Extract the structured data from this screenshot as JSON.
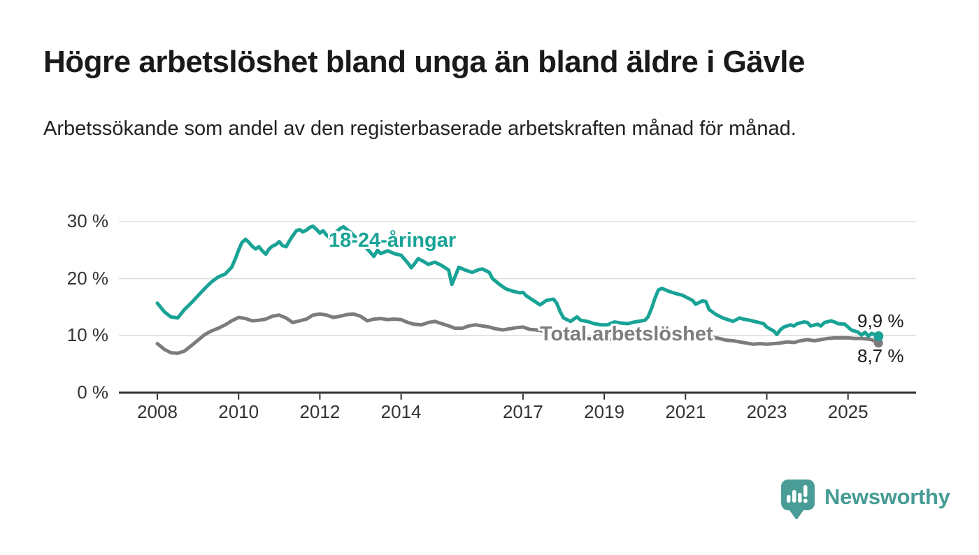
{
  "header": {
    "title": "Högre arbetslöshet bland unga än bland äldre i Gävle",
    "subtitle": "Arbetssökande som andel av den registerbaserade arbetskraften månad för månad."
  },
  "colors": {
    "youth_line": "#18a396",
    "total_line": "#7c7c7c",
    "total_label_text": "#7e7e7e",
    "grid": "#dcdcdc",
    "axis": "#2f2f2f",
    "tick_text": "#333333",
    "end_label_text": "#1a1a1a",
    "brand_teal": "#459c95",
    "background": "#ffffff"
  },
  "branding": {
    "name": "Newsworthy",
    "logo_icon": "speech-bubble-bar-chart-exclamation"
  },
  "chart_data": {
    "type": "line",
    "title": "Högre arbetslöshet bland unga än bland äldre i Gävle",
    "subtitle": "Arbetssökande som andel av den registerbaserade arbetskraften månad för månad.",
    "xlabel": "",
    "ylabel": "",
    "ylim": [
      0,
      30
    ],
    "x_range_decimal_years": [
      2008.0,
      2025.75
    ],
    "grid": true,
    "grid_values": [
      10,
      20,
      30
    ],
    "legend_position": "inline-labels",
    "y_ticks": [
      {
        "value": 30,
        "label": "30 %"
      },
      {
        "value": 20,
        "label": "20 %"
      },
      {
        "value": 10,
        "label": "10 %"
      },
      {
        "value": 0,
        "label": "0 %"
      }
    ],
    "x_ticks": [
      {
        "value": 2008,
        "label": "2008"
      },
      {
        "value": 2010,
        "label": "2010"
      },
      {
        "value": 2012,
        "label": "2012"
      },
      {
        "value": 2014,
        "label": "2014"
      },
      {
        "value": 2017,
        "label": "2017"
      },
      {
        "value": 2019,
        "label": "2019"
      },
      {
        "value": 2021,
        "label": "2021"
      },
      {
        "value": 2023,
        "label": "2023"
      },
      {
        "value": 2025,
        "label": "2025"
      }
    ],
    "series": [
      {
        "name": "18-24-åringar",
        "color": "#18a396",
        "end_label": "9,9 %",
        "end_value": 9.9,
        "points": [
          [
            2008.0,
            15.7
          ],
          [
            2008.17,
            14.2
          ],
          [
            2008.33,
            13.3
          ],
          [
            2008.5,
            13.1
          ],
          [
            2008.67,
            14.6
          ],
          [
            2008.83,
            15.7
          ],
          [
            2009.0,
            17.0
          ],
          [
            2009.17,
            18.3
          ],
          [
            2009.33,
            19.4
          ],
          [
            2009.5,
            20.3
          ],
          [
            2009.67,
            20.8
          ],
          [
            2009.83,
            22.0
          ],
          [
            2009.92,
            23.5
          ],
          [
            2010.0,
            25.0
          ],
          [
            2010.08,
            26.3
          ],
          [
            2010.17,
            26.9
          ],
          [
            2010.25,
            26.4
          ],
          [
            2010.33,
            25.7
          ],
          [
            2010.42,
            25.2
          ],
          [
            2010.5,
            25.6
          ],
          [
            2010.58,
            24.9
          ],
          [
            2010.67,
            24.3
          ],
          [
            2010.75,
            25.2
          ],
          [
            2010.83,
            25.7
          ],
          [
            2010.92,
            26.0
          ],
          [
            2011.0,
            26.5
          ],
          [
            2011.08,
            25.8
          ],
          [
            2011.17,
            25.6
          ],
          [
            2011.25,
            26.6
          ],
          [
            2011.33,
            27.5
          ],
          [
            2011.42,
            28.4
          ],
          [
            2011.5,
            28.6
          ],
          [
            2011.58,
            28.2
          ],
          [
            2011.67,
            28.5
          ],
          [
            2011.75,
            29.0
          ],
          [
            2011.83,
            29.2
          ],
          [
            2011.92,
            28.6
          ],
          [
            2012.0,
            28.0
          ],
          [
            2012.08,
            28.4
          ],
          [
            2012.17,
            27.6
          ],
          [
            2012.25,
            27.2
          ],
          [
            2012.33,
            27.8
          ],
          [
            2012.42,
            28.3
          ],
          [
            2012.5,
            28.8
          ],
          [
            2012.58,
            29.1
          ],
          [
            2012.67,
            28.6
          ],
          [
            2012.75,
            28.2
          ],
          [
            2012.83,
            27.6
          ],
          [
            2012.92,
            27.0
          ],
          [
            2013.0,
            26.4
          ],
          [
            2013.17,
            25.2
          ],
          [
            2013.33,
            23.9
          ],
          [
            2013.42,
            25.0
          ],
          [
            2013.5,
            24.4
          ],
          [
            2013.67,
            24.9
          ],
          [
            2013.83,
            24.4
          ],
          [
            2014.0,
            24.1
          ],
          [
            2014.17,
            22.7
          ],
          [
            2014.25,
            21.9
          ],
          [
            2014.33,
            22.6
          ],
          [
            2014.42,
            23.5
          ],
          [
            2014.58,
            22.9
          ],
          [
            2014.67,
            22.5
          ],
          [
            2014.83,
            22.9
          ],
          [
            2015.0,
            22.3
          ],
          [
            2015.17,
            21.5
          ],
          [
            2015.25,
            19.0
          ],
          [
            2015.33,
            20.4
          ],
          [
            2015.42,
            22.0
          ],
          [
            2015.58,
            21.5
          ],
          [
            2015.75,
            21.1
          ],
          [
            2015.92,
            21.6
          ],
          [
            2016.0,
            21.7
          ],
          [
            2016.17,
            21.1
          ],
          [
            2016.25,
            20.0
          ],
          [
            2016.42,
            19.0
          ],
          [
            2016.58,
            18.2
          ],
          [
            2016.75,
            17.8
          ],
          [
            2016.92,
            17.5
          ],
          [
            2017.0,
            17.6
          ],
          [
            2017.08,
            17.0
          ],
          [
            2017.25,
            16.2
          ],
          [
            2017.42,
            15.4
          ],
          [
            2017.5,
            15.8
          ],
          [
            2017.58,
            16.2
          ],
          [
            2017.75,
            16.4
          ],
          [
            2017.83,
            15.7
          ],
          [
            2017.92,
            14.1
          ],
          [
            2018.0,
            13.1
          ],
          [
            2018.17,
            12.5
          ],
          [
            2018.33,
            13.3
          ],
          [
            2018.42,
            12.7
          ],
          [
            2018.58,
            12.5
          ],
          [
            2018.75,
            12.1
          ],
          [
            2018.92,
            11.9
          ],
          [
            2019.08,
            11.9
          ],
          [
            2019.25,
            12.4
          ],
          [
            2019.42,
            12.2
          ],
          [
            2019.58,
            12.1
          ],
          [
            2019.75,
            12.4
          ],
          [
            2019.92,
            12.6
          ],
          [
            2020.0,
            12.7
          ],
          [
            2020.08,
            13.3
          ],
          [
            2020.17,
            14.9
          ],
          [
            2020.25,
            16.6
          ],
          [
            2020.33,
            18.0
          ],
          [
            2020.42,
            18.3
          ],
          [
            2020.58,
            17.8
          ],
          [
            2020.75,
            17.4
          ],
          [
            2020.92,
            17.1
          ],
          [
            2021.0,
            16.8
          ],
          [
            2021.17,
            16.2
          ],
          [
            2021.25,
            15.5
          ],
          [
            2021.42,
            16.1
          ],
          [
            2021.5,
            16.0
          ],
          [
            2021.58,
            14.6
          ],
          [
            2021.75,
            13.7
          ],
          [
            2021.92,
            13.1
          ],
          [
            2022.0,
            12.9
          ],
          [
            2022.17,
            12.5
          ],
          [
            2022.33,
            13.1
          ],
          [
            2022.42,
            12.9
          ],
          [
            2022.58,
            12.7
          ],
          [
            2022.75,
            12.4
          ],
          [
            2022.92,
            12.1
          ],
          [
            2023.0,
            11.5
          ],
          [
            2023.17,
            10.8
          ],
          [
            2023.25,
            10.2
          ],
          [
            2023.33,
            11.0
          ],
          [
            2023.42,
            11.5
          ],
          [
            2023.58,
            11.9
          ],
          [
            2023.67,
            11.7
          ],
          [
            2023.75,
            12.1
          ],
          [
            2023.92,
            12.4
          ],
          [
            2024.0,
            12.3
          ],
          [
            2024.08,
            11.7
          ],
          [
            2024.25,
            12.0
          ],
          [
            2024.33,
            11.7
          ],
          [
            2024.42,
            12.3
          ],
          [
            2024.58,
            12.6
          ],
          [
            2024.67,
            12.4
          ],
          [
            2024.75,
            12.1
          ],
          [
            2024.92,
            12.0
          ],
          [
            2025.0,
            11.5
          ],
          [
            2025.08,
            11.0
          ],
          [
            2025.25,
            10.6
          ],
          [
            2025.33,
            10.1
          ],
          [
            2025.42,
            10.6
          ],
          [
            2025.5,
            9.9
          ],
          [
            2025.58,
            10.4
          ],
          [
            2025.75,
            9.9
          ]
        ]
      },
      {
        "name": "Total arbetslöshet",
        "color": "#7c7c7c",
        "end_label": "8,7 %",
        "end_value": 8.7,
        "points": [
          [
            2008.0,
            8.6
          ],
          [
            2008.17,
            7.6
          ],
          [
            2008.33,
            7.0
          ],
          [
            2008.5,
            6.9
          ],
          [
            2008.67,
            7.3
          ],
          [
            2008.83,
            8.2
          ],
          [
            2009.0,
            9.2
          ],
          [
            2009.17,
            10.2
          ],
          [
            2009.33,
            10.8
          ],
          [
            2009.5,
            11.3
          ],
          [
            2009.67,
            11.9
          ],
          [
            2009.83,
            12.6
          ],
          [
            2010.0,
            13.2
          ],
          [
            2010.17,
            13.0
          ],
          [
            2010.33,
            12.6
          ],
          [
            2010.5,
            12.7
          ],
          [
            2010.67,
            12.9
          ],
          [
            2010.83,
            13.4
          ],
          [
            2011.0,
            13.6
          ],
          [
            2011.17,
            13.1
          ],
          [
            2011.33,
            12.3
          ],
          [
            2011.5,
            12.6
          ],
          [
            2011.67,
            12.9
          ],
          [
            2011.83,
            13.6
          ],
          [
            2012.0,
            13.8
          ],
          [
            2012.17,
            13.6
          ],
          [
            2012.33,
            13.2
          ],
          [
            2012.5,
            13.4
          ],
          [
            2012.67,
            13.7
          ],
          [
            2012.83,
            13.8
          ],
          [
            2013.0,
            13.4
          ],
          [
            2013.17,
            12.6
          ],
          [
            2013.33,
            12.9
          ],
          [
            2013.5,
            13.0
          ],
          [
            2013.67,
            12.8
          ],
          [
            2013.83,
            12.9
          ],
          [
            2014.0,
            12.8
          ],
          [
            2014.17,
            12.3
          ],
          [
            2014.33,
            12.0
          ],
          [
            2014.5,
            11.9
          ],
          [
            2014.67,
            12.3
          ],
          [
            2014.83,
            12.5
          ],
          [
            2015.0,
            12.1
          ],
          [
            2015.17,
            11.7
          ],
          [
            2015.33,
            11.3
          ],
          [
            2015.5,
            11.3
          ],
          [
            2015.67,
            11.7
          ],
          [
            2015.83,
            11.9
          ],
          [
            2016.0,
            11.7
          ],
          [
            2016.17,
            11.5
          ],
          [
            2016.33,
            11.2
          ],
          [
            2016.5,
            11.0
          ],
          [
            2016.67,
            11.2
          ],
          [
            2016.83,
            11.4
          ],
          [
            2017.0,
            11.5
          ],
          [
            2017.17,
            11.1
          ],
          [
            2017.33,
            11.0
          ],
          [
            2017.5,
            10.8
          ],
          [
            2017.67,
            10.6
          ],
          [
            2017.83,
            10.4
          ],
          [
            2018.0,
            10.1
          ],
          [
            2018.17,
            9.9
          ],
          [
            2018.33,
            9.7
          ],
          [
            2018.58,
            9.5
          ],
          [
            2018.83,
            9.3
          ],
          [
            2019.0,
            9.2
          ],
          [
            2019.25,
            9.4
          ],
          [
            2019.5,
            9.4
          ],
          [
            2019.75,
            9.5
          ],
          [
            2020.0,
            9.7
          ],
          [
            2020.17,
            10.2
          ],
          [
            2020.33,
            10.7
          ],
          [
            2020.5,
            10.5
          ],
          [
            2020.67,
            10.6
          ],
          [
            2020.83,
            10.5
          ],
          [
            2021.0,
            10.6
          ],
          [
            2021.17,
            10.4
          ],
          [
            2021.33,
            10.2
          ],
          [
            2021.5,
            9.9
          ],
          [
            2021.67,
            9.7
          ],
          [
            2021.83,
            9.5
          ],
          [
            2022.0,
            9.2
          ],
          [
            2022.17,
            9.1
          ],
          [
            2022.33,
            8.9
          ],
          [
            2022.5,
            8.7
          ],
          [
            2022.67,
            8.5
          ],
          [
            2022.83,
            8.6
          ],
          [
            2023.0,
            8.5
          ],
          [
            2023.17,
            8.6
          ],
          [
            2023.33,
            8.7
          ],
          [
            2023.5,
            8.9
          ],
          [
            2023.67,
            8.8
          ],
          [
            2023.83,
            9.1
          ],
          [
            2024.0,
            9.3
          ],
          [
            2024.17,
            9.1
          ],
          [
            2024.33,
            9.3
          ],
          [
            2024.5,
            9.5
          ],
          [
            2024.67,
            9.6
          ],
          [
            2024.83,
            9.6
          ],
          [
            2025.0,
            9.6
          ],
          [
            2025.17,
            9.5
          ],
          [
            2025.33,
            9.5
          ],
          [
            2025.5,
            9.4
          ],
          [
            2025.58,
            9.3
          ],
          [
            2025.75,
            8.7
          ]
        ]
      }
    ]
  }
}
